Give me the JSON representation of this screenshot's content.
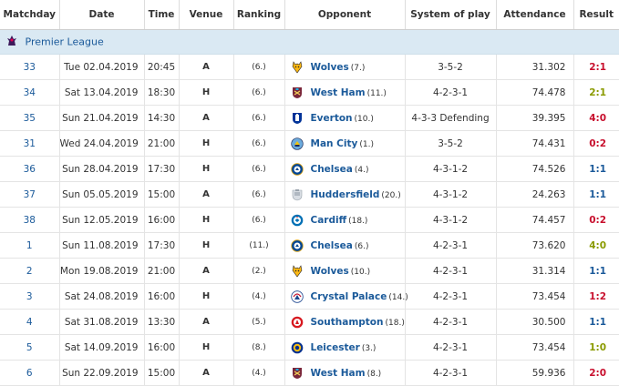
{
  "headers": {
    "matchday": "Matchday",
    "date": "Date",
    "time": "Time",
    "venue": "Venue",
    "ranking": "Ranking",
    "opponent": "Opponent",
    "system": "System of play",
    "attendance": "Attendance",
    "result": "Result"
  },
  "league": {
    "name": "Premier League",
    "icon": "premier-league-logo"
  },
  "rows": [
    {
      "matchday": "33",
      "date": "Tue 02.04.2019",
      "time": "20:45",
      "venue": "A",
      "ranking": "(6.)",
      "opponent": "Wolves",
      "opp_rank": "(7.)",
      "system": "3-5-2",
      "attendance": "31.302",
      "result": "2:1",
      "crest": "wolves",
      "res_class": "l-res"
    },
    {
      "matchday": "34",
      "date": "Sat 13.04.2019",
      "time": "18:30",
      "venue": "H",
      "ranking": "(6.)",
      "opponent": "West Ham",
      "opp_rank": "(11.)",
      "system": "4-2-3-1",
      "attendance": "74.478",
      "result": "2:1",
      "crest": "westham",
      "res_class": "wy"
    },
    {
      "matchday": "35",
      "date": "Sun 21.04.2019",
      "time": "14:30",
      "venue": "A",
      "ranking": "(6.)",
      "opponent": "Everton",
      "opp_rank": "(10.)",
      "system": "4-3-3 Defending",
      "attendance": "39.395",
      "result": "4:0",
      "crest": "everton",
      "res_class": "l-res"
    },
    {
      "matchday": "31",
      "date": "Wed 24.04.2019",
      "time": "21:00",
      "venue": "H",
      "ranking": "(6.)",
      "opponent": "Man City",
      "opp_rank": "(1.)",
      "system": "3-5-2",
      "attendance": "74.431",
      "result": "0:2",
      "crest": "mancity",
      "res_class": "l-res"
    },
    {
      "matchday": "36",
      "date": "Sun 28.04.2019",
      "time": "17:30",
      "venue": "H",
      "ranking": "(6.)",
      "opponent": "Chelsea",
      "opp_rank": "(4.)",
      "system": "4-3-1-2",
      "attendance": "74.526",
      "result": "1:1",
      "crest": "chelsea",
      "res_class": "d"
    },
    {
      "matchday": "37",
      "date": "Sun 05.05.2019",
      "time": "15:00",
      "venue": "A",
      "ranking": "(6.)",
      "opponent": "Huddersfield",
      "opp_rank": "(20.)",
      "system": "4-3-1-2",
      "attendance": "24.263",
      "result": "1:1",
      "crest": "huddersfield",
      "res_class": "d"
    },
    {
      "matchday": "38",
      "date": "Sun 12.05.2019",
      "time": "16:00",
      "venue": "H",
      "ranking": "(6.)",
      "opponent": "Cardiff",
      "opp_rank": "(18.)",
      "system": "4-3-1-2",
      "attendance": "74.457",
      "result": "0:2",
      "crest": "cardiff",
      "res_class": "l-res"
    },
    {
      "matchday": "1",
      "date": "Sun 11.08.2019",
      "time": "17:30",
      "venue": "H",
      "ranking": "(11.)",
      "opponent": "Chelsea",
      "opp_rank": "(6.)",
      "system": "4-2-3-1",
      "attendance": "73.620",
      "result": "4:0",
      "crest": "chelsea",
      "res_class": "wy"
    },
    {
      "matchday": "2",
      "date": "Mon 19.08.2019",
      "time": "21:00",
      "venue": "A",
      "ranking": "(2.)",
      "opponent": "Wolves",
      "opp_rank": "(10.)",
      "system": "4-2-3-1",
      "attendance": "31.314",
      "result": "1:1",
      "crest": "wolves",
      "res_class": "d"
    },
    {
      "matchday": "3",
      "date": "Sat 24.08.2019",
      "time": "16:00",
      "venue": "H",
      "ranking": "(4.)",
      "opponent": "Crystal Palace",
      "opp_rank": "(14.)",
      "system": "4-2-3-1",
      "attendance": "73.454",
      "result": "1:2",
      "crest": "palace",
      "res_class": "l-res"
    },
    {
      "matchday": "4",
      "date": "Sat 31.08.2019",
      "time": "13:30",
      "venue": "A",
      "ranking": "(5.)",
      "opponent": "Southampton",
      "opp_rank": "(18.)",
      "system": "4-2-3-1",
      "attendance": "30.500",
      "result": "1:1",
      "crest": "southampton",
      "res_class": "d"
    },
    {
      "matchday": "5",
      "date": "Sat 14.09.2019",
      "time": "16:00",
      "venue": "H",
      "ranking": "(8.)",
      "opponent": "Leicester",
      "opp_rank": "(3.)",
      "system": "4-2-3-1",
      "attendance": "73.454",
      "result": "1:0",
      "crest": "leicester",
      "res_class": "wy"
    },
    {
      "matchday": "6",
      "date": "Sun 22.09.2019",
      "time": "15:00",
      "venue": "A",
      "ranking": "(4.)",
      "opponent": "West Ham",
      "opp_rank": "(8.)",
      "system": "4-2-3-1",
      "attendance": "59.936",
      "result": "2:0",
      "crest": "westham",
      "res_class": "l-res"
    }
  ],
  "colors": {
    "link_blue": "#1b5a9a",
    "league_bg": "#dae9f3",
    "win_green": "#8a9a00",
    "loss_red": "#c8102e",
    "draw_blue": "#1b5a9a"
  }
}
